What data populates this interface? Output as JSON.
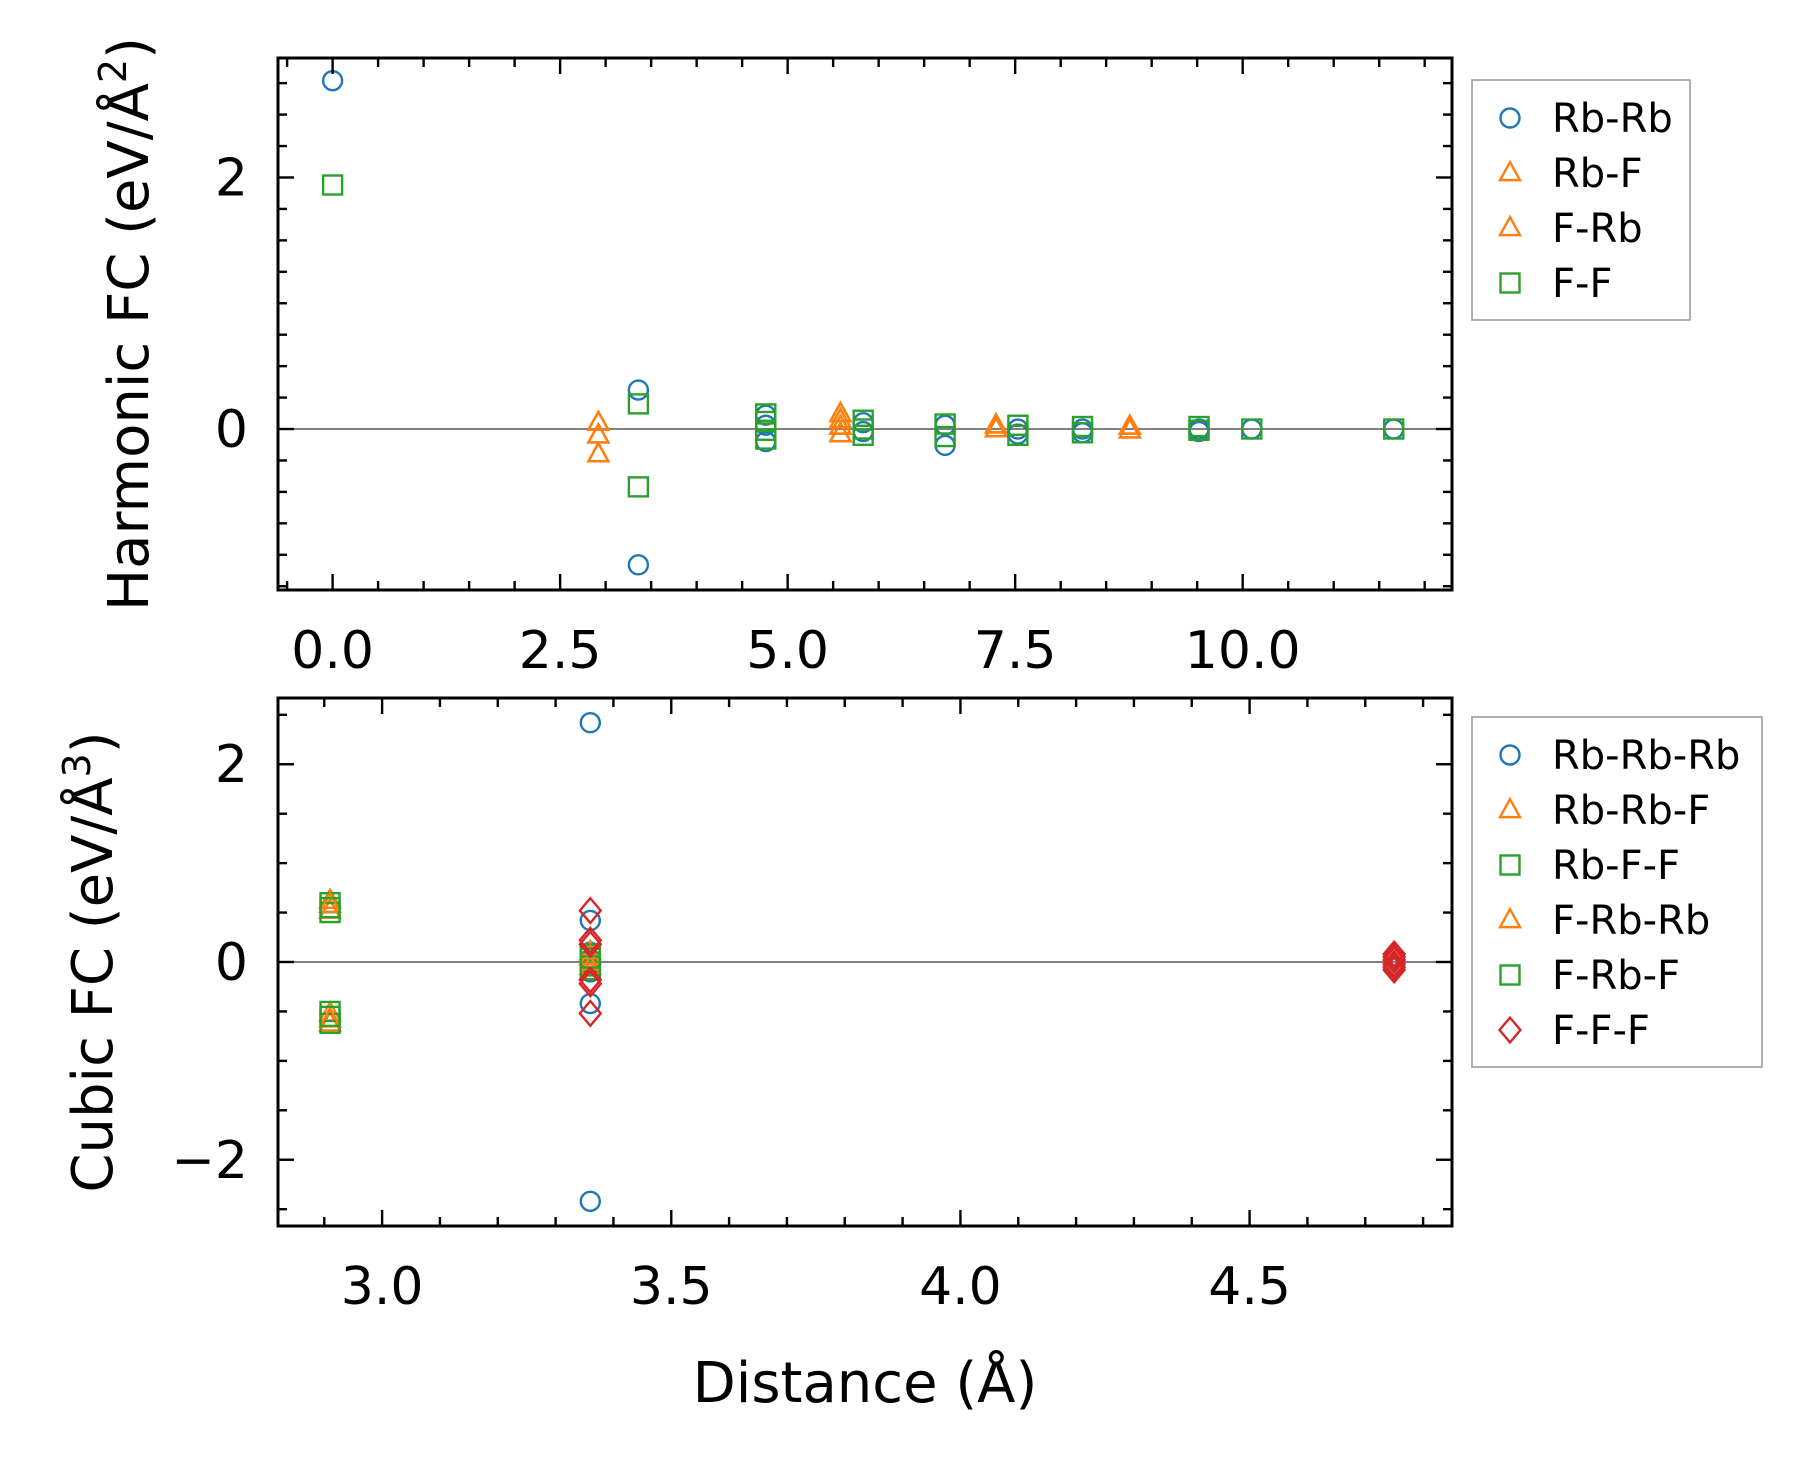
{
  "colors": {
    "Rb-Rb": "#1f77b4",
    "Rb-F": "#ff7f0e",
    "F-Rb": "#ff7f0e",
    "F-F": "#2ca02c",
    "Rb-Rb-Rb": "#1f77b4",
    "Rb-Rb-F": "#ff7f0e",
    "Rb-F-F": "#2ca02c",
    "F-Rb-Rb": "#ff7f0e",
    "F-Rb-F": "#2ca02c",
    "F-F-F": "#d62728",
    "zero_line": "#808080"
  },
  "chart_data": [
    {
      "type": "scatter",
      "name": "harmonic",
      "ylabel": "Harmonic FC (eV/Å²)",
      "ylabel_main": "Harmonic FC (eV/Å",
      "ylabel_sup": "2",
      "ylabel_close": ")",
      "xlabel": "",
      "xlim": [
        -0.6,
        12.3
      ],
      "ylim": [
        -1.28,
        2.95
      ],
      "xticks": [
        "0.0",
        "2.5",
        "5.0",
        "7.5",
        "10.0"
      ],
      "xtick_values": [
        0,
        2.5,
        5,
        7.5,
        10
      ],
      "yticks": [
        "0",
        "2"
      ],
      "ytick_values": [
        0,
        2
      ],
      "zero_line": true,
      "legend": [
        "Rb-Rb",
        "Rb-F",
        "F-Rb",
        "F-F"
      ],
      "series": [
        {
          "name": "Rb-Rb",
          "marker": "circle",
          "points": [
            [
              0,
              2.77
            ],
            [
              3.36,
              0.31
            ],
            [
              3.36,
              -1.08
            ],
            [
              4.76,
              0.11
            ],
            [
              4.76,
              0.03
            ],
            [
              4.76,
              -0.1
            ],
            [
              5.83,
              0.05
            ],
            [
              5.83,
              -0.02
            ],
            [
              6.73,
              0.03
            ],
            [
              6.73,
              -0.13
            ],
            [
              7.53,
              0.0
            ],
            [
              7.53,
              -0.04
            ],
            [
              8.24,
              0.0
            ],
            [
              8.24,
              -0.03
            ],
            [
              9.52,
              0.0
            ],
            [
              9.52,
              -0.02
            ],
            [
              10.1,
              0.0
            ],
            [
              11.66,
              0.0
            ]
          ]
        },
        {
          "name": "Rb-F",
          "marker": "triangle",
          "points": [
            [
              2.92,
              0.05
            ],
            [
              2.92,
              -0.05
            ],
            [
              2.92,
              -0.2
            ],
            [
              5.58,
              0.12
            ],
            [
              5.58,
              0.07
            ],
            [
              5.58,
              0.02
            ],
            [
              5.58,
              -0.04
            ],
            [
              7.29,
              0.03
            ],
            [
              7.29,
              0.0
            ],
            [
              8.76,
              0.02
            ],
            [
              8.76,
              -0.01
            ]
          ]
        },
        {
          "name": "F-Rb",
          "marker": "triangle",
          "points": [
            [
              2.92,
              0.05
            ],
            [
              2.92,
              -0.05
            ],
            [
              2.92,
              -0.2
            ],
            [
              5.58,
              0.12
            ],
            [
              5.58,
              0.07
            ],
            [
              5.58,
              0.02
            ],
            [
              5.58,
              -0.04
            ],
            [
              7.29,
              0.03
            ],
            [
              7.29,
              0.0
            ],
            [
              8.76,
              0.02
            ],
            [
              8.76,
              -0.01
            ]
          ]
        },
        {
          "name": "F-F",
          "marker": "square",
          "points": [
            [
              0,
              1.94
            ],
            [
              3.36,
              0.2
            ],
            [
              3.36,
              -0.46
            ],
            [
              4.76,
              0.12
            ],
            [
              4.76,
              0.06
            ],
            [
              4.76,
              -0.01
            ],
            [
              4.76,
              -0.08
            ],
            [
              5.83,
              0.07
            ],
            [
              5.83,
              0.0
            ],
            [
              5.83,
              -0.05
            ],
            [
              6.73,
              0.04
            ],
            [
              6.73,
              -0.06
            ],
            [
              7.53,
              0.03
            ],
            [
              7.53,
              -0.05
            ],
            [
              8.24,
              0.02
            ],
            [
              8.24,
              -0.03
            ],
            [
              9.52,
              0.02
            ],
            [
              9.52,
              -0.01
            ],
            [
              10.1,
              0.0
            ],
            [
              11.66,
              0.0
            ]
          ]
        }
      ]
    },
    {
      "type": "scatter",
      "name": "cubic",
      "ylabel": "Cubic FC (eV/Å³)",
      "ylabel_main": "Cubic FC (eV/Å",
      "ylabel_sup": "3",
      "ylabel_close": ")",
      "xlabel": "Distance (Å)",
      "xlim": [
        2.82,
        4.85
      ],
      "ylim": [
        -2.67,
        2.67
      ],
      "xticks": [
        "3.0",
        "3.5",
        "4.0",
        "4.5"
      ],
      "xtick_values": [
        3.0,
        3.5,
        4.0,
        4.5
      ],
      "yticks": [
        "2",
        "0",
        "−2"
      ],
      "ytick_values": [
        2,
        0,
        -2
      ],
      "zero_line": true,
      "legend": [
        "Rb-Rb-Rb",
        "Rb-Rb-F",
        "Rb-F-F",
        "F-Rb-Rb",
        "F-Rb-F",
        "F-F-F"
      ],
      "series": [
        {
          "name": "Rb-Rb-Rb",
          "marker": "circle",
          "points": [
            [
              3.36,
              2.42
            ],
            [
              3.36,
              0.42
            ],
            [
              3.36,
              0.1
            ],
            [
              3.36,
              -0.1
            ],
            [
              3.36,
              -0.42
            ],
            [
              3.36,
              -2.42
            ],
            [
              4.75,
              0.05
            ],
            [
              4.75,
              -0.05
            ]
          ]
        },
        {
          "name": "Rb-Rb-F",
          "marker": "triangle",
          "points": [
            [
              2.91,
              0.62
            ],
            [
              2.91,
              0.52
            ],
            [
              2.91,
              -0.52
            ],
            [
              2.91,
              -0.62
            ],
            [
              3.36,
              0.1
            ],
            [
              3.36,
              -0.1
            ]
          ]
        },
        {
          "name": "Rb-F-F",
          "marker": "square",
          "points": [
            [
              2.91,
              0.6
            ],
            [
              2.91,
              0.5
            ],
            [
              2.91,
              -0.5
            ],
            [
              2.91,
              -0.62
            ],
            [
              3.36,
              0.08
            ],
            [
              3.36,
              0.0
            ],
            [
              3.36,
              -0.08
            ]
          ]
        },
        {
          "name": "F-Rb-Rb",
          "marker": "triangle",
          "points": [
            [
              2.91,
              0.58
            ],
            [
              2.91,
              -0.58
            ],
            [
              3.36,
              0.05
            ],
            [
              3.36,
              -0.05
            ]
          ]
        },
        {
          "name": "F-Rb-F",
          "marker": "square",
          "points": [
            [
              2.91,
              0.55
            ],
            [
              2.91,
              -0.55
            ],
            [
              3.36,
              0.04
            ],
            [
              3.36,
              -0.04
            ]
          ]
        },
        {
          "name": "F-F-F",
          "marker": "diamond",
          "points": [
            [
              3.36,
              0.52
            ],
            [
              3.36,
              0.22
            ],
            [
              3.36,
              0.18
            ],
            [
              3.36,
              -0.18
            ],
            [
              3.36,
              -0.22
            ],
            [
              3.36,
              -0.52
            ],
            [
              4.75,
              0.08
            ],
            [
              4.75,
              0.05
            ],
            [
              4.75,
              0.02
            ],
            [
              4.75,
              -0.02
            ],
            [
              4.75,
              -0.05
            ],
            [
              4.75,
              -0.08
            ]
          ]
        }
      ]
    }
  ]
}
